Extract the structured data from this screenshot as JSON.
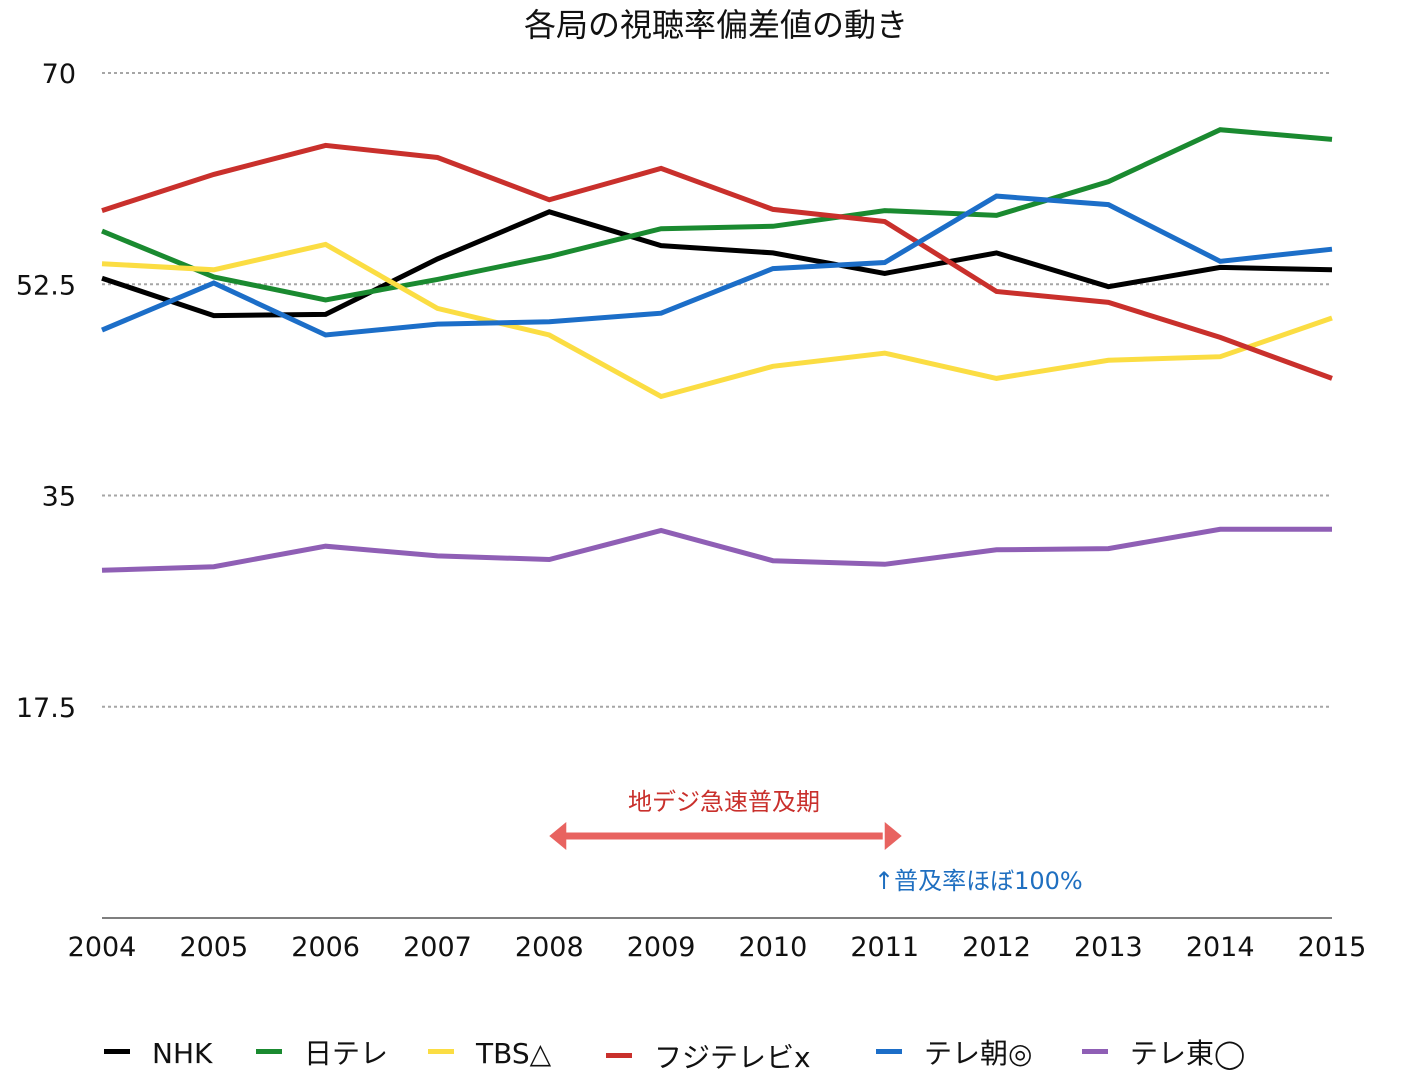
{
  "chart_data": {
    "type": "line",
    "title": "各局の視聴率偏差値の動き",
    "xlabel": "",
    "ylabel": "",
    "x": [
      2004,
      2005,
      2006,
      2007,
      2008,
      2009,
      2010,
      2011,
      2012,
      2013,
      2014,
      2015
    ],
    "x_tick_labels": [
      "2004",
      "2005",
      "2006",
      "2007",
      "2008",
      "2009",
      "2010",
      "2011",
      "2012",
      "2013",
      "2014",
      "2015"
    ],
    "ylim": [
      0,
      70
    ],
    "y_ticks": [
      17.5,
      35,
      52.5,
      70
    ],
    "y_tick_labels": [
      "17.5",
      "35",
      "52.5",
      "70"
    ],
    "grid": true,
    "legend_position": "bottom",
    "series": [
      {
        "name": "NHK",
        "color": "#000000",
        "values": [
          53.0,
          49.9,
          50.0,
          54.6,
          58.5,
          55.7,
          55.1,
          53.4,
          55.1,
          52.3,
          53.9,
          53.7
        ]
      },
      {
        "name": "日テレ",
        "color": "#1a8a30",
        "values": [
          56.9,
          53.1,
          51.2,
          52.9,
          54.8,
          57.1,
          57.3,
          58.6,
          58.2,
          61.0,
          65.3,
          64.5
        ]
      },
      {
        "name": "TBS△",
        "color": "#fbdd43",
        "values": [
          54.2,
          53.7,
          55.8,
          50.5,
          48.3,
          43.2,
          45.7,
          46.8,
          44.7,
          46.2,
          46.5,
          49.7
        ]
      },
      {
        "name": "フジテレビx",
        "color": "#c9302c",
        "values": [
          58.6,
          61.6,
          64.0,
          63.0,
          59.5,
          62.1,
          58.7,
          57.7,
          51.9,
          51.0,
          48.1,
          44.7
        ]
      },
      {
        "name": "テレ朝◎",
        "color": "#1c6ec8",
        "values": [
          48.7,
          52.6,
          48.3,
          49.2,
          49.4,
          50.1,
          53.8,
          54.3,
          59.8,
          59.1,
          54.4,
          55.4
        ]
      },
      {
        "name": "テレ東◯",
        "color": "#8f5fb5",
        "values": [
          28.8,
          29.1,
          30.8,
          30.0,
          29.7,
          32.1,
          29.6,
          29.3,
          30.5,
          30.6,
          32.2,
          32.2
        ]
      }
    ],
    "annotations": [
      {
        "text": "地デジ急速普及期",
        "type": "double-arrow",
        "from_x": 2008,
        "to_x": 2011,
        "color": "#e86360",
        "text_color": "#c9302c"
      },
      {
        "text": "↑普及率ほぼ100%",
        "at_x": 2011,
        "color": "#1f6fc0"
      }
    ]
  }
}
